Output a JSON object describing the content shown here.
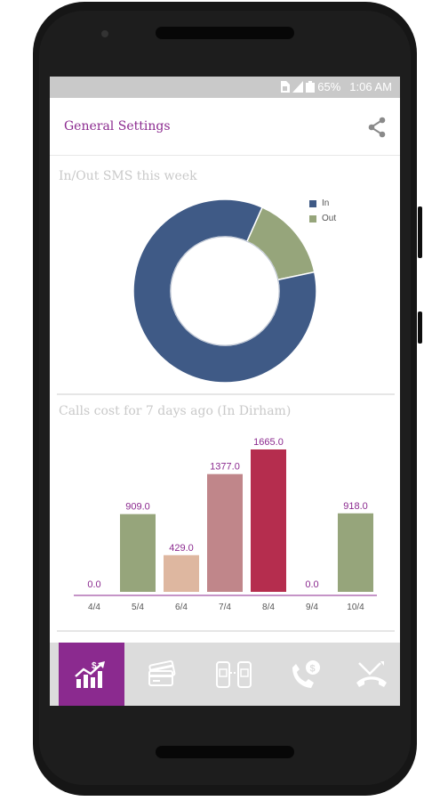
{
  "status_bar": {
    "battery": "65%",
    "time": "1:06 AM"
  },
  "header": {
    "title": "General Settings",
    "share_icon": "share-icon"
  },
  "sms_section": {
    "title": "In/Out SMS this week"
  },
  "calls_section": {
    "title": "Calls cost for 7 days ago (In Dirham)"
  },
  "colors": {
    "accent": "#8b2a8f",
    "in": "#3f5a86",
    "out": "#96a57b"
  },
  "chart_data": [
    {
      "type": "pie",
      "title": "In/Out SMS this week",
      "labels": [
        "In",
        "Out"
      ],
      "values": [
        85,
        15
      ],
      "colors": [
        "#3f5a86",
        "#96a57b"
      ],
      "legend": "top-right",
      "donut": true
    },
    {
      "type": "bar",
      "title": "Calls cost for 7 days ago (In Dirham)",
      "categories": [
        "4/4",
        "5/4",
        "6/4",
        "7/4",
        "8/4",
        "9/4",
        "10/4"
      ],
      "values": [
        0.0,
        909.0,
        429.0,
        1377.0,
        1665.0,
        0.0,
        918.0
      ],
      "value_labels": [
        "0.0",
        "909.0",
        "429.0",
        "1377.0",
        "1665.0",
        "0.0",
        "918.0"
      ],
      "colors": [
        "#96a57b",
        "#96a57b",
        "#deb7a0",
        "#c0868a",
        "#b52d4e",
        "#96a57b",
        "#96a57b"
      ],
      "ylim": [
        0,
        1665
      ],
      "grid": false
    }
  ],
  "bottom_nav": [
    {
      "icon": "chart-growth-icon",
      "active": true
    },
    {
      "icon": "credit-cards-icon",
      "active": false
    },
    {
      "icon": "sms-transfer-icon",
      "active": false
    },
    {
      "icon": "call-cost-icon",
      "active": false
    },
    {
      "icon": "missed-call-icon",
      "active": false
    }
  ]
}
